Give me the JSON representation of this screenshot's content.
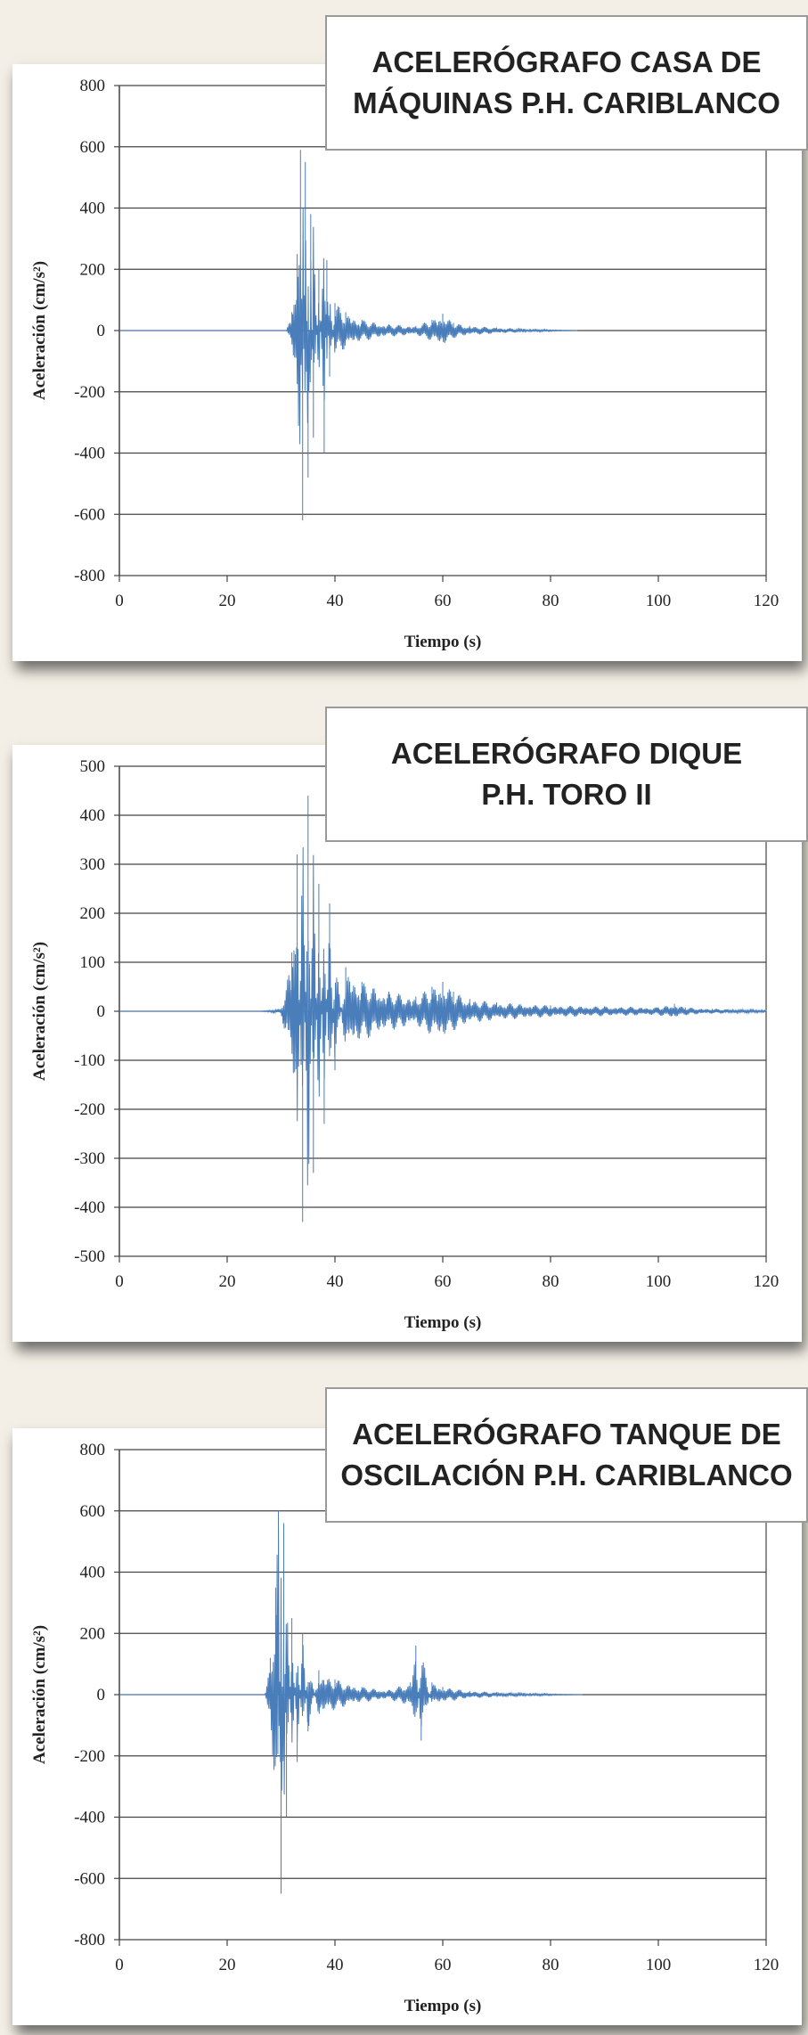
{
  "chart_data": [
    {
      "type": "line",
      "title_lines": [
        "ACELERÓGRAFO CASA DE",
        "MÁQUINAS P.H. CARIBLANCO"
      ],
      "xlabel": "Tiempo (s)",
      "ylabel": "Aceleración (cm/s²)",
      "xlim": [
        0,
        120
      ],
      "ylim": [
        -800,
        800
      ],
      "xticks": [
        0,
        20,
        40,
        60,
        80,
        100,
        120
      ],
      "yticks": [
        800,
        600,
        400,
        200,
        0,
        -200,
        -400,
        -600,
        -800
      ],
      "grid": "horizontal",
      "line_color": "#4a7ebb",
      "series": [
        {
          "x": [
            0,
            31,
            32,
            33,
            33.6,
            34,
            34.5,
            35,
            35.5,
            36,
            37,
            38,
            38.5,
            39,
            40,
            42,
            45,
            50,
            55,
            58,
            60,
            62,
            65,
            70,
            75,
            80,
            85
          ],
          "y": [
            0,
            0,
            60,
            250,
            590,
            -620,
            550,
            -480,
            380,
            -350,
            200,
            -400,
            230,
            -150,
            90,
            60,
            35,
            20,
            15,
            35,
            55,
            25,
            15,
            10,
            5,
            3,
            0
          ]
        }
      ]
    },
    {
      "type": "line",
      "title_lines": [
        "ACELERÓGRAFO DIQUE",
        "P.H. TORO II"
      ],
      "xlabel": "Tiempo (s)",
      "ylabel": "Aceleración (cm/s²)",
      "xlim": [
        0,
        120
      ],
      "ylim": [
        -500,
        500
      ],
      "xticks": [
        0,
        20,
        40,
        60,
        80,
        100,
        120
      ],
      "yticks": [
        500,
        400,
        300,
        200,
        100,
        0,
        -100,
        -200,
        -300,
        -400,
        -500
      ],
      "grid": "horizontal",
      "line_color": "#4a7ebb",
      "series": [
        {
          "x": [
            0,
            26,
            30,
            32,
            33,
            34,
            35,
            36,
            37,
            38,
            39,
            40,
            42,
            45,
            50,
            55,
            58,
            60,
            62,
            65,
            70,
            80,
            90,
            100,
            103,
            105,
            110,
            120
          ],
          "y": [
            0,
            0,
            5,
            120,
            320,
            -430,
            440,
            -330,
            260,
            -230,
            220,
            -120,
            90,
            60,
            40,
            30,
            50,
            60,
            40,
            25,
            18,
            12,
            10,
            8,
            15,
            8,
            5,
            3
          ]
        }
      ]
    },
    {
      "type": "line",
      "title_lines": [
        "ACELERÓGRAFO TANQUE DE",
        "OSCILACIÓN P.H. CARIBLANCO"
      ],
      "xlabel": "Tiempo (s)",
      "ylabel": "Aceleración (cm/s²)",
      "xlim": [
        0,
        120
      ],
      "ylim": [
        -800,
        800
      ],
      "xticks": [
        0,
        20,
        40,
        60,
        80,
        100,
        120
      ],
      "yticks": [
        800,
        600,
        400,
        200,
        0,
        -200,
        -400,
        -600,
        -800
      ],
      "grid": "horizontal",
      "line_color": "#4a7ebb",
      "series": [
        {
          "x": [
            0,
            27,
            28,
            29,
            29.5,
            30,
            30.5,
            31,
            32,
            33,
            34,
            35,
            37,
            40,
            45,
            50,
            54,
            55,
            56,
            58,
            60,
            65,
            70,
            75,
            80,
            86
          ],
          "y": [
            0,
            0,
            120,
            350,
            600,
            -650,
            560,
            -400,
            250,
            -220,
            200,
            -120,
            80,
            50,
            25,
            15,
            40,
            160,
            -150,
            40,
            25,
            12,
            8,
            5,
            3,
            0
          ]
        }
      ]
    }
  ]
}
